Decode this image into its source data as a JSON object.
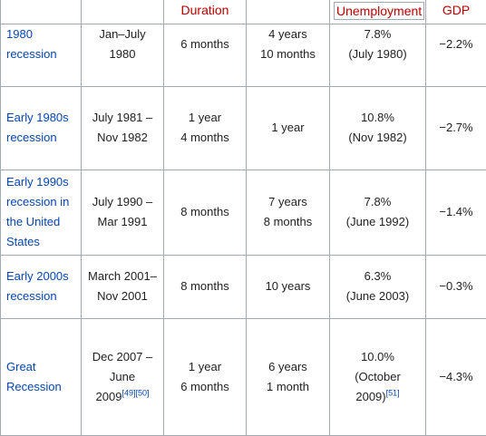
{
  "headers": {
    "duration": "Duration",
    "unemployment": "Unemployment",
    "gdp": "GDP"
  },
  "rows": [
    {
      "name": [
        "1980",
        "recession"
      ],
      "dates": [
        "Jan–July",
        "1980"
      ],
      "duration": [
        "6 months"
      ],
      "period": [
        "4 years",
        "10 months"
      ],
      "unemployment": [
        "7.8%",
        "(July 1980)"
      ],
      "gdp": "−2.2%"
    },
    {
      "name": [
        "Early 1980s",
        "recession"
      ],
      "dates": [
        "July 1981 –",
        "Nov 1982"
      ],
      "duration": [
        "1 year",
        "4 months"
      ],
      "period": [
        "1 year"
      ],
      "unemployment": [
        "10.8%",
        "(Nov 1982)"
      ],
      "gdp": "−2.7%"
    },
    {
      "name": [
        "Early 1990s",
        "recession in",
        "the United",
        "States"
      ],
      "dates": [
        "July 1990 –",
        "Mar 1991"
      ],
      "duration": [
        "8 months"
      ],
      "period": [
        "7 years",
        "8 months"
      ],
      "unemployment": [
        "7.8%",
        "(June 1992)"
      ],
      "gdp": "−1.4%"
    },
    {
      "name": [
        "Early 2000s",
        "recession"
      ],
      "dates": [
        "March 2001–",
        "Nov 2001"
      ],
      "duration": [
        "8 months"
      ],
      "period": [
        "10 years"
      ],
      "unemployment": [
        "6.3%",
        "(June 2003)"
      ],
      "gdp": "−0.3%"
    },
    {
      "name": [
        "Great",
        "Recession"
      ],
      "dates": [
        "Dec 2007 –",
        "June",
        "2009"
      ],
      "dates_refs": "[49][50]",
      "duration": [
        "1 year",
        "6 months"
      ],
      "period": [
        "6 years",
        "1 month"
      ],
      "unemployment": [
        "10.0%",
        "(October",
        "2009)"
      ],
      "unemployment_ref": "[51]",
      "gdp": "−4.3%"
    }
  ]
}
